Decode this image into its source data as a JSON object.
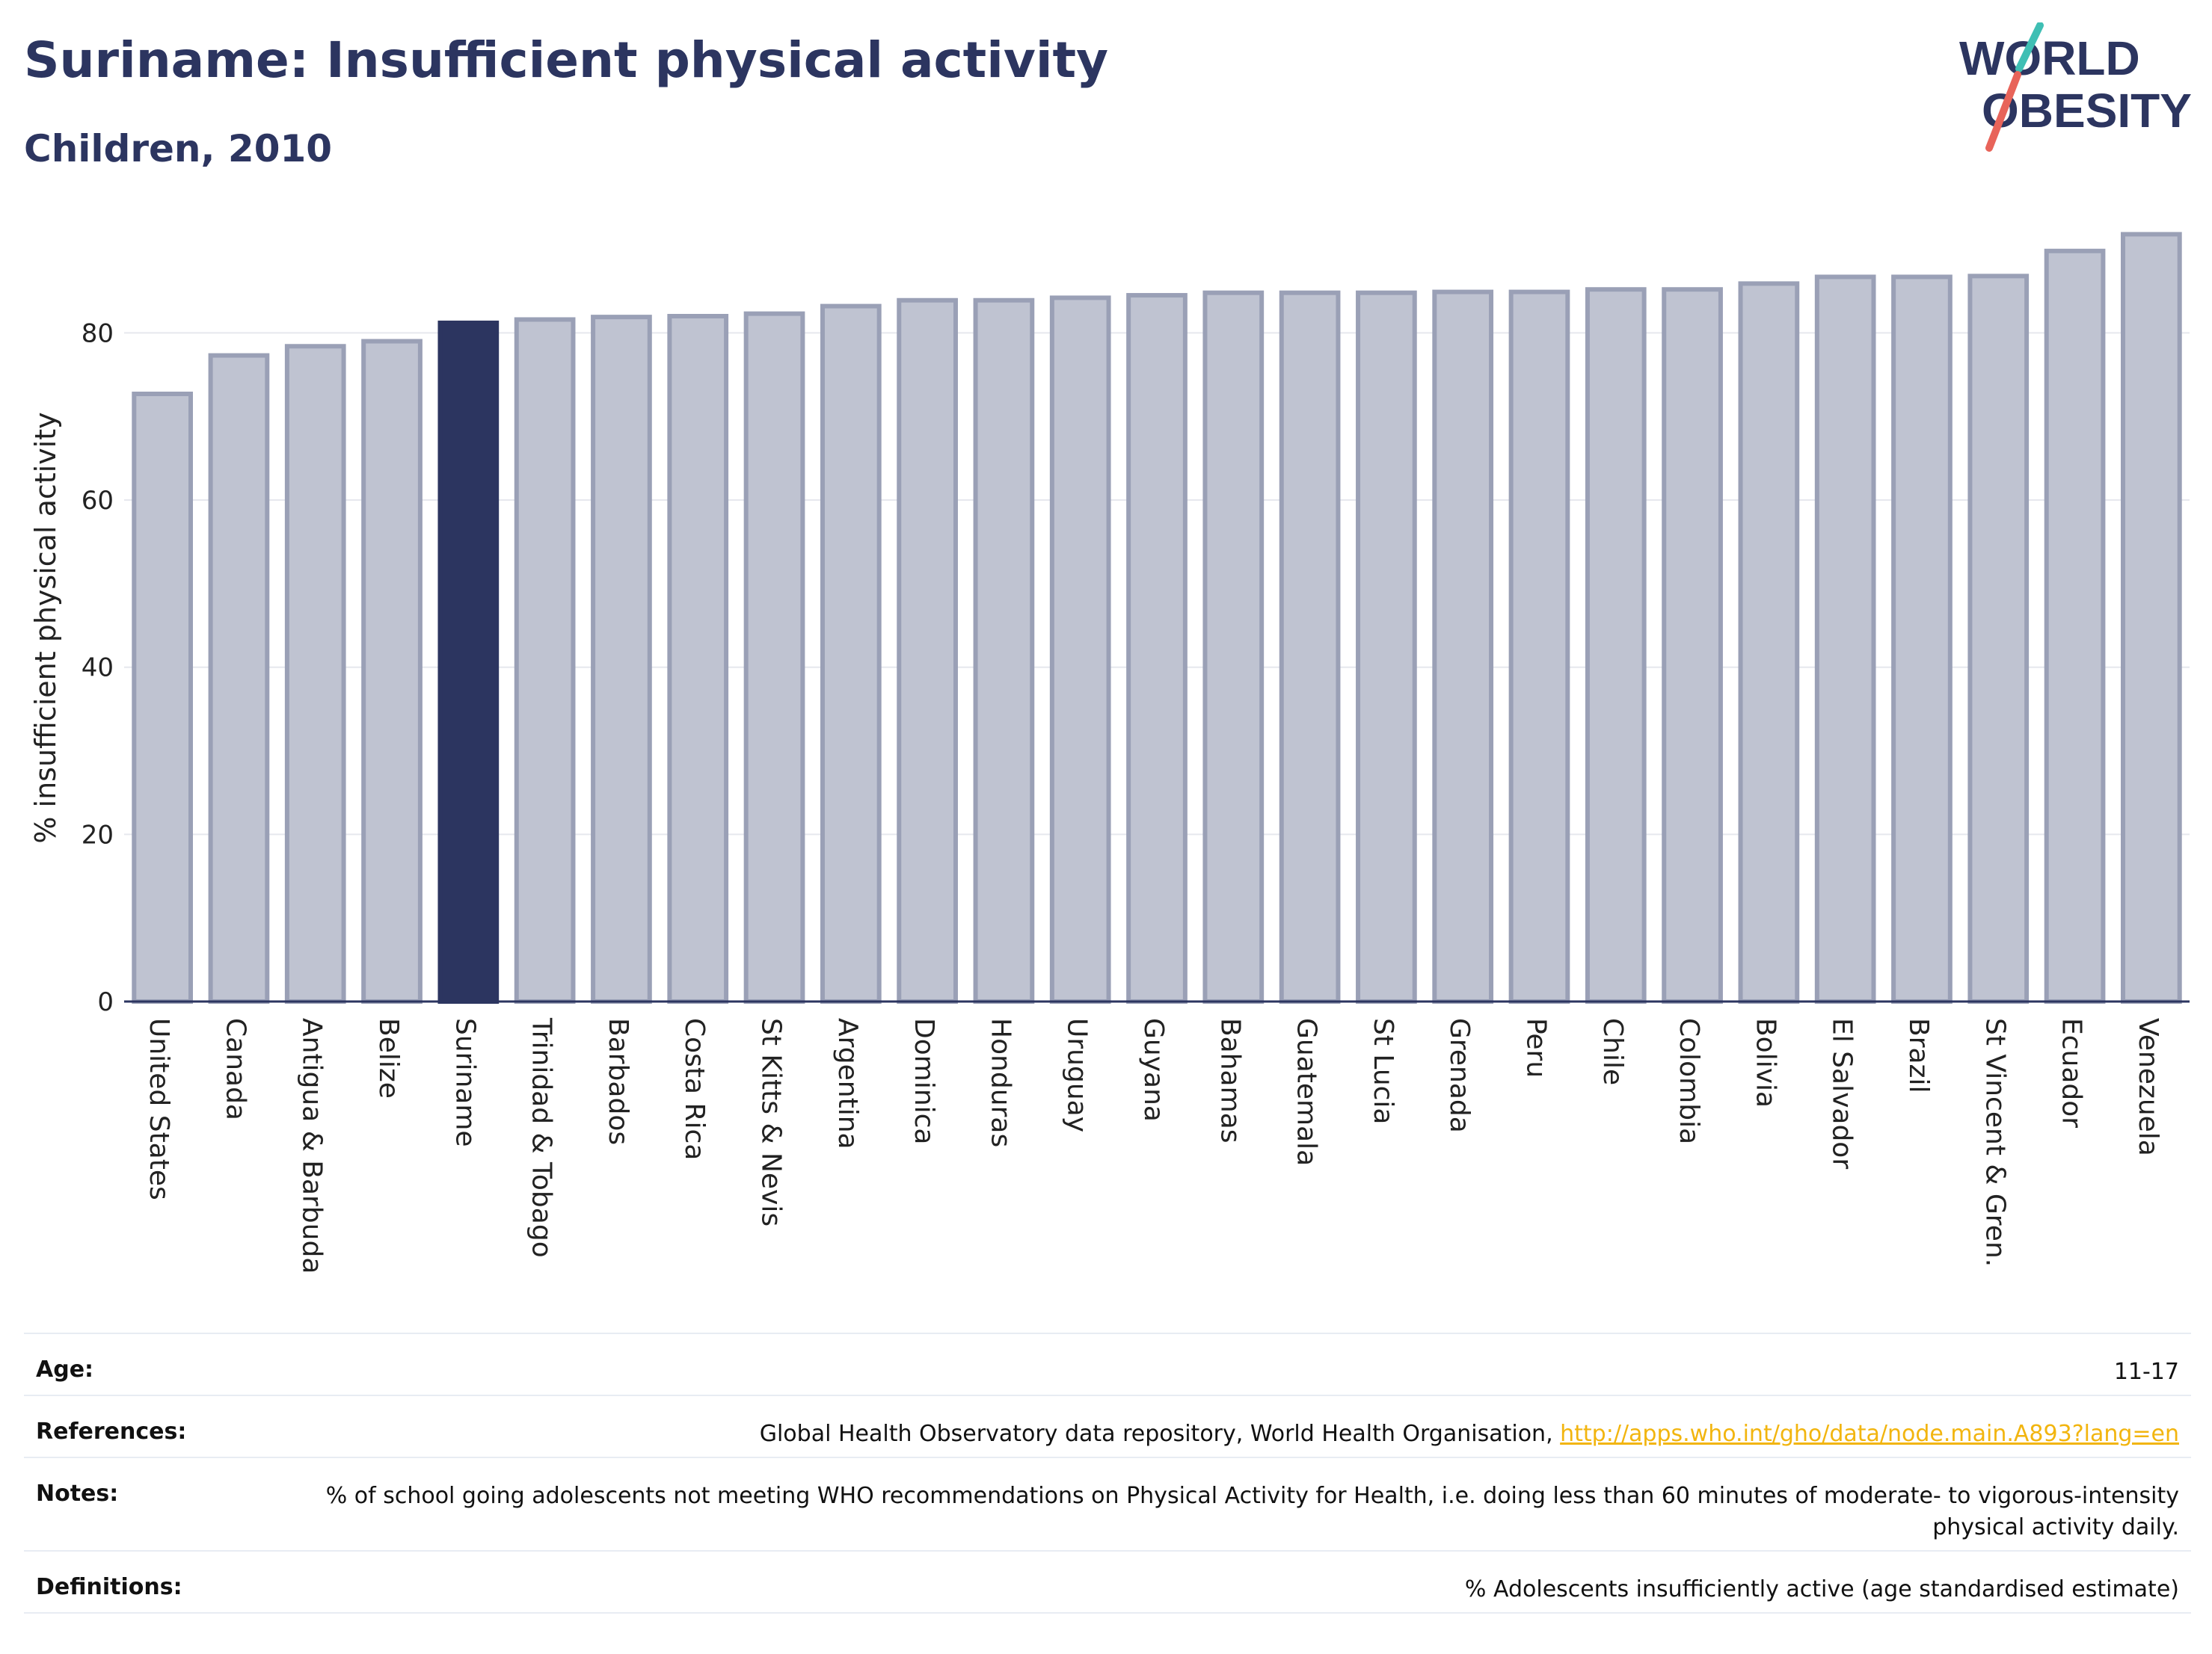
{
  "header": {
    "title": "Suriname: Insufficient physical activity",
    "subtitle": "Children, 2010"
  },
  "logo": {
    "line1": "WORLD",
    "line2": "OBESITY",
    "text_color": "#2c3560",
    "slash_teal": "#3fbfb4",
    "slash_coral": "#e8645a"
  },
  "chart_data": {
    "type": "bar",
    "title": "Suriname: Insufficient physical activity",
    "subtitle": "Children, 2010",
    "xlabel": "",
    "ylabel": "% insufficient physical activity",
    "ylim": [
      0,
      93
    ],
    "yticks": [
      0,
      20,
      40,
      60,
      80
    ],
    "grid": true,
    "highlight": "Suriname",
    "colors": {
      "bar": "#bfc3d1",
      "bar_border": "#9aa0b6",
      "highlight": "#2c3560"
    },
    "categories": [
      "United States",
      "Canada",
      "Antigua & Barbuda",
      "Belize",
      "Suriname",
      "Trinidad & Tobago",
      "Barbados",
      "Costa Rica",
      "St Kitts & Nevis",
      "Argentina",
      "Dominica",
      "Honduras",
      "Uruguay",
      "Guyana",
      "Bahamas",
      "Guatemala",
      "St Lucia",
      "Grenada",
      "Peru",
      "Chile",
      "Colombia",
      "Bolivia",
      "El Salvador",
      "Brazil",
      "St Vincent & Gren.",
      "Ecuador",
      "Venezuela"
    ],
    "values": [
      72.7,
      77.3,
      78.4,
      79.0,
      81.2,
      81.6,
      81.9,
      82.0,
      82.3,
      83.2,
      83.9,
      83.9,
      84.2,
      84.5,
      84.8,
      84.8,
      84.8,
      84.9,
      84.9,
      85.2,
      85.2,
      85.9,
      86.7,
      86.7,
      86.8,
      89.8,
      91.8
    ]
  },
  "info": {
    "age_label": "Age:",
    "age_value": "11-17",
    "references_label": "References:",
    "references_text": "Global Health Observatory data repository, World Health Organisation, ",
    "references_link": "http://apps.who.int/gho/data/node.main.A893?lang=en",
    "notes_label": "Notes:",
    "notes_text": "% of school going adolescents not meeting WHO recommendations on Physical Activity for Health, i.e. doing less than 60 minutes of moderate- to vigorous-intensity physical activity daily.",
    "definitions_label": "Definitions:",
    "definitions_text": "% Adolescents insufficiently active (age standardised estimate)"
  }
}
